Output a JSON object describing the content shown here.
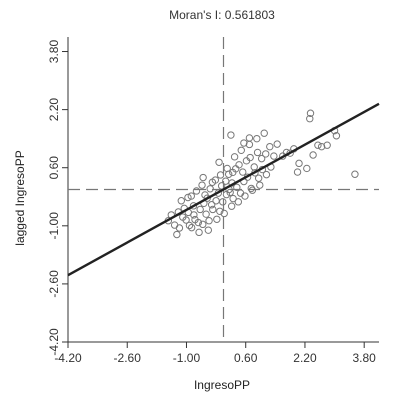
{
  "chart_data": {
    "type": "scatter",
    "title": "Moran's I: 0.561803",
    "xlabel": "IngresoPP",
    "ylabel": "lagged IngresoPP",
    "xlim": [
      -4.2,
      4.2
    ],
    "ylim": [
      -4.2,
      4.2
    ],
    "x_ticks": [
      "-4.20",
      "-2.60",
      "-1.00",
      "0.60",
      "2.20",
      "3.80"
    ],
    "y_ticks": [
      "-4.20",
      "-2.60",
      "-1.00",
      "0.60",
      "2.20",
      "3.80"
    ],
    "x_tick_values": [
      -4.2,
      -2.6,
      -1.0,
      0.6,
      2.2,
      3.8
    ],
    "y_tick_values": [
      -4.2,
      -2.6,
      -1.0,
      0.6,
      2.2,
      3.8
    ],
    "mean_x": 0,
    "mean_y": 0,
    "regression": {
      "slope": 0.561803,
      "intercept": 0
    },
    "grid": false,
    "legend": "none",
    "colors": {
      "points": "#777777",
      "fit_line": "#222222",
      "mean_lines": "#777777",
      "axes": "#333333"
    },
    "points": [
      [
        -1.49,
        -0.86
      ],
      [
        -1.32,
        -0.98
      ],
      [
        -1.26,
        -1.24
      ],
      [
        -1.19,
        -1.06
      ],
      [
        -1.1,
        -0.76
      ],
      [
        -1.01,
        -0.84
      ],
      [
        -0.92,
        -0.99
      ],
      [
        -0.86,
        -1.05
      ],
      [
        -0.77,
        -0.83
      ],
      [
        -0.68,
        -0.91
      ],
      [
        -0.56,
        -0.96
      ],
      [
        -0.47,
        -0.68
      ],
      [
        -0.39,
        -0.86
      ],
      [
        -0.29,
        -0.55
      ],
      [
        -0.2,
        -0.31
      ],
      [
        -0.1,
        -0.6
      ],
      [
        -0.02,
        -0.34
      ],
      [
        0.08,
        -0.14
      ],
      [
        0.18,
        -0.08
      ],
      [
        0.26,
        -0.25
      ],
      [
        0.36,
        0.06
      ],
      [
        0.46,
        -0.1
      ],
      [
        0.55,
        0.22
      ],
      [
        0.65,
        0.34
      ],
      [
        0.75,
        0.03
      ],
      [
        0.85,
        0.46
      ],
      [
        0.95,
        0.31
      ],
      [
        1.05,
        0.55
      ],
      [
        1.16,
        0.41
      ],
      [
        1.28,
        0.62
      ],
      [
        -1.41,
        -0.7
      ],
      [
        -1.22,
        -0.62
      ],
      [
        -1.06,
        -0.52
      ],
      [
        -0.95,
        -0.63
      ],
      [
        -0.81,
        -0.45
      ],
      [
        -0.63,
        -0.55
      ],
      [
        -0.53,
        -0.38
      ],
      [
        -0.44,
        -0.24
      ],
      [
        -0.32,
        -0.42
      ],
      [
        -0.14,
        -0.1
      ],
      [
        -0.05,
        0.1
      ],
      [
        0.06,
        0.23
      ],
      [
        0.14,
        0.42
      ],
      [
        0.23,
        0.18
      ],
      [
        0.33,
        0.57
      ],
      [
        0.42,
        0.68
      ],
      [
        0.52,
        0.48
      ],
      [
        0.62,
        0.79
      ],
      [
        0.72,
        0.88
      ],
      [
        0.83,
        0.62
      ],
      [
        0.92,
        1.02
      ],
      [
        1.03,
        0.85
      ],
      [
        1.14,
        0.98
      ],
      [
        1.25,
        1.18
      ],
      [
        1.36,
        0.92
      ],
      [
        -1.14,
        -0.31
      ],
      [
        -0.87,
        -0.18
      ],
      [
        -0.73,
        -0.04
      ],
      [
        -0.58,
        0.12
      ],
      [
        -0.36,
        0.02
      ],
      [
        -0.22,
        0.26
      ],
      [
        -0.08,
        0.4
      ],
      [
        0.1,
        0.58
      ],
      [
        0.3,
        0.9
      ],
      [
        0.48,
        1.08
      ],
      [
        0.7,
        1.24
      ],
      [
        0.9,
        1.4
      ],
      [
        1.1,
        1.55
      ],
      [
        -0.66,
        -1.18
      ],
      [
        -0.41,
        -1.12
      ],
      [
        -0.18,
        -0.82
      ],
      [
        0.02,
        -0.66
      ],
      [
        0.22,
        -0.46
      ],
      [
        0.4,
        -0.34
      ],
      [
        0.58,
        -0.18
      ],
      [
        0.78,
        -0.02
      ],
      [
        0.98,
        0.12
      ],
      [
        -0.96,
        -0.22
      ],
      [
        -0.5,
        -0.15
      ],
      [
        0.15,
        0.0
      ],
      [
        -0.55,
        0.33
      ],
      [
        -0.12,
        0.75
      ],
      [
        0.2,
        1.5
      ],
      [
        0.55,
        1.28
      ],
      [
        0.7,
        1.42
      ],
      [
        1.45,
        1.25
      ],
      [
        1.6,
        0.92
      ],
      [
        1.8,
        1.0
      ],
      [
        2.0,
        0.48
      ],
      [
        2.04,
        0.72
      ],
      [
        2.25,
        0.58
      ],
      [
        2.33,
        1.95
      ],
      [
        2.35,
        2.1
      ],
      [
        2.42,
        0.95
      ],
      [
        2.55,
        1.22
      ],
      [
        2.65,
        1.18
      ],
      [
        2.8,
        1.22
      ],
      [
        3.0,
        1.62
      ],
      [
        3.05,
        1.48
      ],
      [
        3.55,
        0.42
      ],
      [
        1.9,
        1.12
      ],
      [
        1.7,
        1.02
      ],
      [
        0.25,
        0.47
      ],
      [
        -0.3,
        0.2
      ],
      [
        -0.8,
        -0.7
      ]
    ]
  }
}
